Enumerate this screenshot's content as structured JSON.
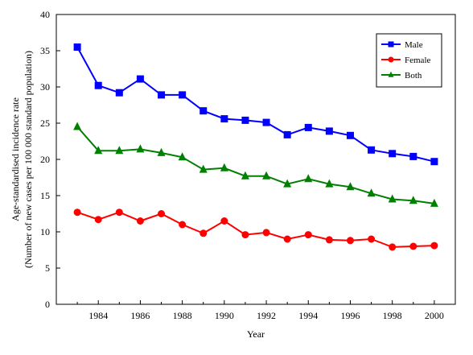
{
  "chart_data": {
    "type": "line",
    "xlabel": "Year",
    "ylabel": "Age-standardised incidence rate",
    "ylabel2": "(Number of new cases per 100 000 standard population)",
    "xlim": [
      1982,
      2001
    ],
    "ylim": [
      0,
      40
    ],
    "xticks": [
      1984,
      1986,
      1988,
      1990,
      1992,
      1994,
      1996,
      1998,
      2000
    ],
    "yticks": [
      0,
      5,
      10,
      15,
      20,
      25,
      30,
      35,
      40
    ],
    "grid": false,
    "legend_position": "top-right",
    "x": [
      1983,
      1984,
      1985,
      1986,
      1987,
      1988,
      1989,
      1990,
      1991,
      1992,
      1993,
      1994,
      1995,
      1996,
      1997,
      1998,
      1999,
      2000
    ],
    "series": [
      {
        "name": "Male",
        "color": "#0000FF",
        "marker": "square",
        "values": [
          35.5,
          30.2,
          29.2,
          31.1,
          28.9,
          28.9,
          26.7,
          25.6,
          25.4,
          25.1,
          23.4,
          24.4,
          23.9,
          23.3,
          21.3,
          20.8,
          20.4,
          19.7
        ]
      },
      {
        "name": "Female",
        "color": "#FF0000",
        "marker": "circle",
        "values": [
          12.7,
          11.7,
          12.7,
          11.5,
          12.5,
          11.0,
          9.8,
          11.5,
          9.6,
          9.9,
          9.0,
          9.6,
          8.9,
          8.8,
          9.0,
          7.9,
          8.0,
          8.1
        ]
      },
      {
        "name": "Both",
        "color": "#008000",
        "marker": "triangle",
        "values": [
          24.5,
          21.2,
          21.2,
          21.4,
          20.9,
          20.3,
          18.6,
          18.8,
          17.7,
          17.7,
          16.6,
          17.3,
          16.6,
          16.2,
          15.3,
          14.5,
          14.3,
          13.9
        ]
      }
    ]
  }
}
